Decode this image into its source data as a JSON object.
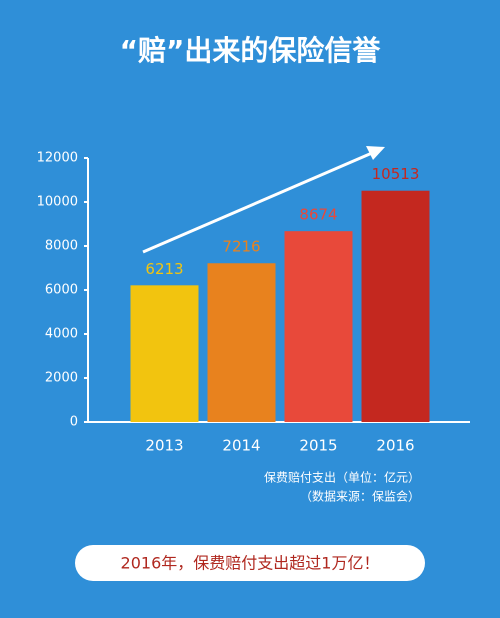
{
  "chart_data": {
    "type": "bar",
    "title": "“赔”出来的保险信誉",
    "categories": [
      "2013",
      "2014",
      "2015",
      "2016"
    ],
    "values": [
      6213,
      7216,
      8674,
      10513
    ],
    "colors": [
      "#f2c40f",
      "#e8821e",
      "#e8493a",
      "#c4281f"
    ],
    "ylim": [
      0,
      12000
    ],
    "yticks": [
      0,
      2000,
      4000,
      6000,
      8000,
      10000,
      12000
    ],
    "notes": [
      "保费赔付支出（单位：亿元）",
      "（数据来源：保监会）"
    ],
    "banner": "2016年，保费赔付支出超过1万亿！"
  }
}
